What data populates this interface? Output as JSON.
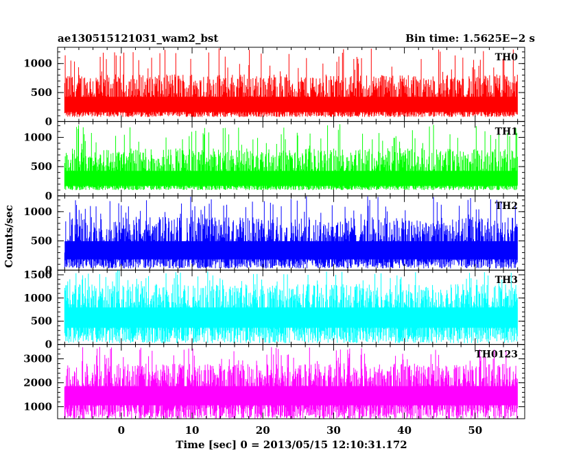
{
  "header": {
    "left": "ae130515121031_wam2_bst",
    "right": "Bin time: 1.5625E−2 s"
  },
  "chart_data": {
    "type": "line",
    "title": "ae130515121031_wam2_bst",
    "bin_time_label": "Bin time: 1.5625E−2 s",
    "xlabel": "Time [sec] 0 = 2013/05/15 12:10:31.172",
    "ylabel": "Counts/sec",
    "xlim": [
      -9,
      57
    ],
    "data_x_range": [
      -8,
      56
    ],
    "x_ticks": [
      0,
      10,
      20,
      30,
      40,
      50
    ],
    "grid": false,
    "panels": [
      {
        "name": "TH0",
        "color": "#ff0000",
        "ylim": [
          0,
          1280
        ],
        "y_ticks": [
          0,
          500,
          1000
        ],
        "baseline": 80,
        "mean": 500,
        "typical_low": 200,
        "typical_high": 850,
        "max": 1280
      },
      {
        "name": "TH1",
        "color": "#00ff00",
        "ylim": [
          0,
          1270
        ],
        "y_ticks": [
          0,
          500,
          1000
        ],
        "baseline": 100,
        "mean": 420,
        "typical_low": 200,
        "typical_high": 850,
        "max": 1230
      },
      {
        "name": "TH2",
        "color": "#0000ff",
        "ylim": [
          0,
          1270
        ],
        "y_ticks": [
          0,
          500,
          1000
        ],
        "baseline": 30,
        "mean": 560,
        "typical_low": 250,
        "typical_high": 950,
        "max": 1270
      },
      {
        "name": "TH3",
        "color": "#00ffff",
        "ylim": [
          0,
          1600
        ],
        "y_ticks": [
          0,
          500,
          1000,
          1500
        ],
        "baseline": 30,
        "mean": 900,
        "typical_low": 500,
        "typical_high": 1350,
        "max": 1600
      },
      {
        "name": "TH0123",
        "color": "#ff00ff",
        "ylim": [
          500,
          3600
        ],
        "y_ticks": [
          1000,
          2000,
          3000
        ],
        "baseline": 500,
        "mean": 2000,
        "typical_low": 1300,
        "typical_high": 2900,
        "max": 3500
      }
    ]
  }
}
